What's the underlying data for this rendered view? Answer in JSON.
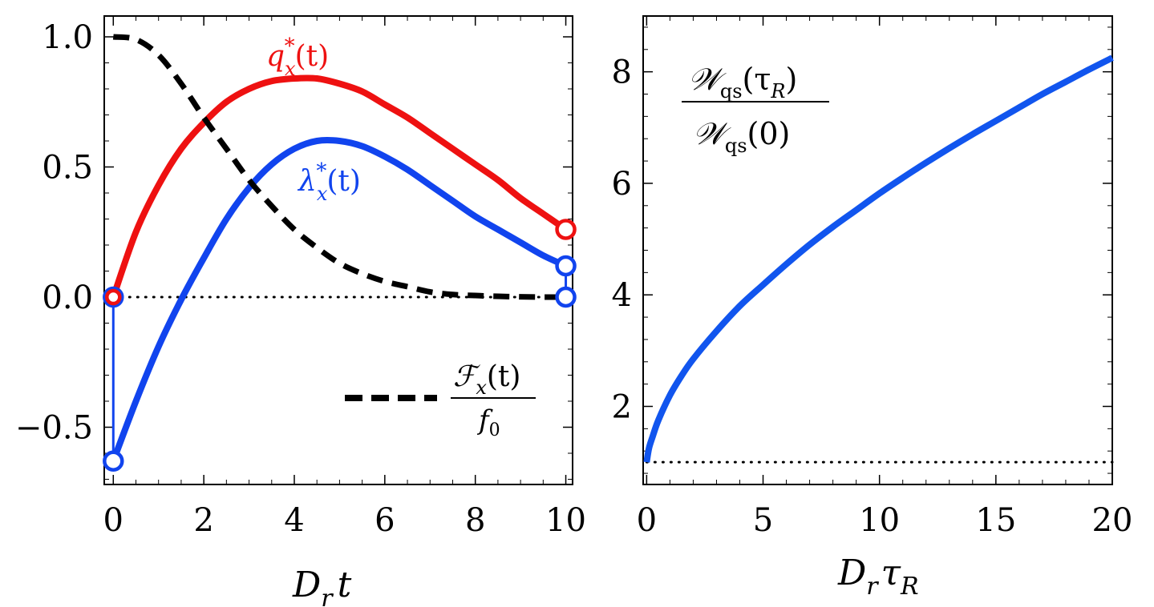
{
  "chart_data": [
    {
      "type": "line",
      "xlabel_main": "D",
      "xlabel_sub": "r",
      "xlabel_tail": "t",
      "xlim": [
        -0.2,
        10.15
      ],
      "ylim": [
        -0.72,
        1.08
      ],
      "xticks": [
        0,
        2,
        4,
        6,
        8,
        10
      ],
      "xtick_labels": [
        "0",
        "2",
        "4",
        "6",
        "8",
        "10"
      ],
      "yticks": [
        -0.5,
        0.0,
        0.5,
        1.0
      ],
      "ytick_labels": [
        "−0.5",
        "0.0",
        "0.5",
        "1.0"
      ],
      "series": [
        {
          "name": "q_x*(t)",
          "label_main": "q",
          "label_sub": "x",
          "label_sup": "*",
          "label_tail": "(t)",
          "color": "#ee1111",
          "style": "solid",
          "x": [
            0,
            0.5,
            1,
            1.5,
            2,
            2.5,
            3,
            3.5,
            4,
            4.5,
            5,
            5.5,
            6,
            6.5,
            7,
            7.5,
            8,
            8.5,
            9,
            9.5,
            10
          ],
          "y": [
            0.0,
            0.25,
            0.43,
            0.57,
            0.67,
            0.75,
            0.8,
            0.83,
            0.84,
            0.84,
            0.82,
            0.79,
            0.74,
            0.69,
            0.63,
            0.57,
            0.51,
            0.45,
            0.38,
            0.32,
            0.26
          ]
        },
        {
          "name": "λ_x*(t)",
          "label_main": "λ",
          "label_sub": "x",
          "label_sup": "*",
          "label_tail": "(t)",
          "color": "#1144ee",
          "style": "solid",
          "x": [
            0,
            0.5,
            1,
            1.5,
            2,
            2.5,
            3,
            3.5,
            4,
            4.5,
            5,
            5.5,
            6,
            6.5,
            7,
            7.5,
            8,
            8.5,
            9,
            9.5,
            10
          ],
          "y": [
            -0.63,
            -0.4,
            -0.19,
            -0.01,
            0.15,
            0.3,
            0.42,
            0.51,
            0.57,
            0.6,
            0.6,
            0.58,
            0.54,
            0.49,
            0.43,
            0.37,
            0.31,
            0.26,
            0.21,
            0.16,
            0.12
          ]
        },
        {
          "name": "F_x(t)/f0",
          "label_num_main": "ℱ",
          "label_num_sub": "x",
          "label_num_tail": "(t)",
          "label_den_main": "f",
          "label_den_sub": "0",
          "color": "#000000",
          "style": "dashed",
          "x": [
            0,
            0.5,
            1,
            1.5,
            2,
            2.5,
            3,
            3.5,
            4,
            4.5,
            5,
            5.5,
            6,
            6.5,
            7,
            7.5,
            8,
            8.5,
            9,
            9.5,
            10
          ],
          "y": [
            1.0,
            0.99,
            0.93,
            0.82,
            0.69,
            0.57,
            0.45,
            0.35,
            0.26,
            0.19,
            0.13,
            0.09,
            0.06,
            0.04,
            0.02,
            0.01,
            0.006,
            0.003,
            0.001,
            0.0,
            0.0
          ]
        }
      ],
      "reference_line": {
        "y": 0.0,
        "style": "dotted"
      },
      "boundary_markers": [
        {
          "x": 0,
          "y": 0.0,
          "color": "#1144ee"
        },
        {
          "x": 0,
          "y": 0.0,
          "color": "#ee1111"
        },
        {
          "x": 0,
          "y": -0.63,
          "color": "#1144ee"
        },
        {
          "x": 10,
          "y": 0.26,
          "color": "#ee1111"
        },
        {
          "x": 10,
          "y": 0.12,
          "color": "#1144ee"
        },
        {
          "x": 10,
          "y": 0.0,
          "color": "#1144ee"
        }
      ],
      "jumps": [
        {
          "x": 0,
          "y_from": 0.0,
          "y_to": -0.63,
          "color": "#1144ee"
        },
        {
          "x": 10,
          "y_from": 0.12,
          "y_to": 0.0,
          "color": "#1144ee"
        }
      ]
    },
    {
      "type": "line",
      "xlabel_main": "D",
      "xlabel_sub": "r",
      "xlabel_tail": "τ",
      "xlabel_tail_sub": "R",
      "xlim": [
        -0.15,
        20
      ],
      "ylim": [
        0.6,
        9.0
      ],
      "xticks": [
        0,
        5,
        10,
        15,
        20
      ],
      "xtick_labels": [
        "0",
        "5",
        "10",
        "15",
        "20"
      ],
      "yticks": [
        2,
        4,
        6,
        8
      ],
      "ytick_labels": [
        "2",
        "4",
        "6",
        "8"
      ],
      "annotation": {
        "num_main": "𝒲",
        "num_sub": "qs",
        "num_tail": "(τ",
        "num_tail_sub": "R",
        "num_close": ")",
        "den_main": "𝒲",
        "den_sub": "qs",
        "den_tail": "(0)"
      },
      "series": [
        {
          "name": "W_qs(tau_R)/W_qs(0)",
          "color": "#1155ee",
          "style": "solid",
          "x": [
            0,
            0.1,
            0.25,
            0.5,
            1,
            1.5,
            2,
            3,
            4,
            5,
            6,
            7,
            8,
            9,
            10,
            11,
            12,
            13,
            14,
            15,
            16,
            17,
            18,
            19,
            20
          ],
          "y": [
            1.0,
            1.25,
            1.45,
            1.75,
            2.2,
            2.55,
            2.85,
            3.35,
            3.8,
            4.18,
            4.55,
            4.9,
            5.22,
            5.52,
            5.82,
            6.1,
            6.37,
            6.63,
            6.88,
            7.12,
            7.36,
            7.6,
            7.82,
            8.04,
            8.25
          ]
        }
      ],
      "reference_line": {
        "y": 1.0,
        "style": "dotted"
      }
    }
  ]
}
